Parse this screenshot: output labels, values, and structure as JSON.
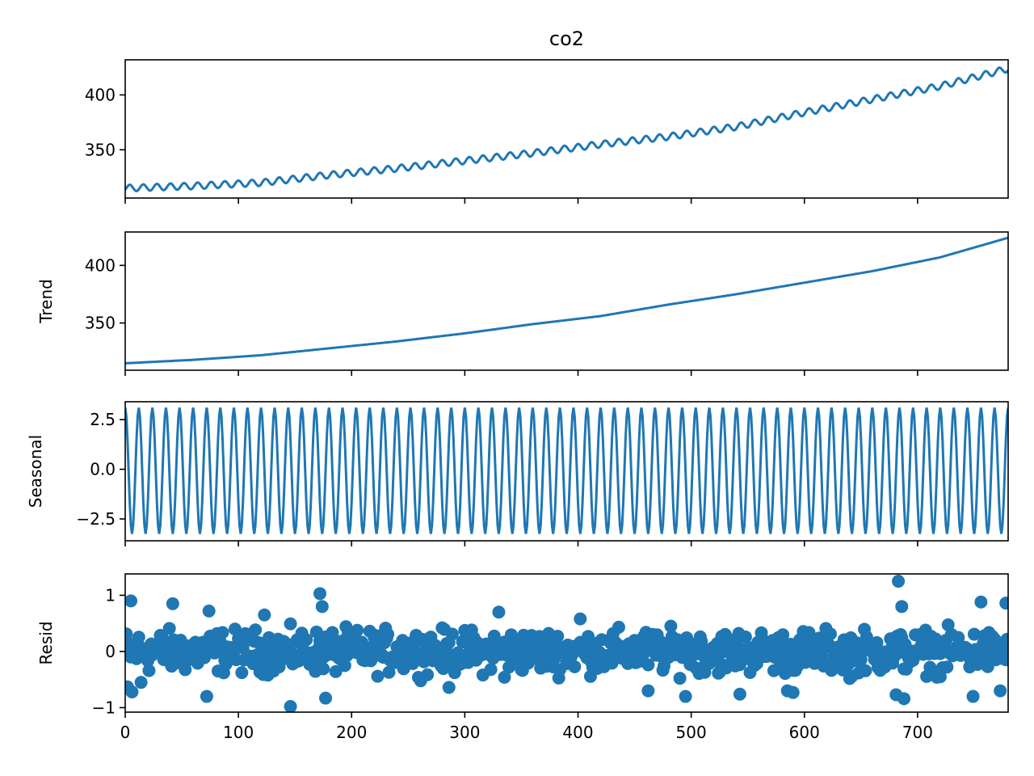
{
  "figure": {
    "title": "co2",
    "series_color": "#1f77b4"
  },
  "chart_data": [
    {
      "type": "line",
      "panel": "observed",
      "title": "co2",
      "ylabel": "",
      "xlim": [
        0,
        780
      ],
      "ylim": [
        306,
        432
      ],
      "yticks": [
        350,
        400
      ],
      "ytick_labels": [
        "350",
        "400"
      ],
      "xtick_labels_shown": false,
      "seasonal_amplitude": 3,
      "series": [
        {
          "x": [
            0,
            60,
            120,
            180,
            240,
            300,
            360,
            420,
            480,
            540,
            600,
            660,
            720,
            780
          ],
          "values": [
            315,
            317,
            320,
            327,
            333,
            340,
            347,
            355,
            362,
            371,
            384,
            396,
            408,
            424
          ]
        }
      ]
    },
    {
      "type": "line",
      "panel": "trend",
      "ylabel": "Trend",
      "xlim": [
        0,
        780
      ],
      "ylim": [
        309,
        429
      ],
      "yticks": [
        350,
        400
      ],
      "ytick_labels": [
        "350",
        "400"
      ],
      "xtick_labels_shown": false,
      "series": [
        {
          "x": [
            0,
            60,
            120,
            180,
            240,
            300,
            360,
            420,
            480,
            540,
            600,
            660,
            720,
            780
          ],
          "values": [
            315,
            318,
            322,
            328,
            334,
            341,
            349,
            356,
            366,
            375,
            385,
            395,
            407,
            424
          ]
        }
      ]
    },
    {
      "type": "line",
      "panel": "seasonal",
      "ylabel": "Seasonal",
      "xlim": [
        0,
        780
      ],
      "ylim": [
        -3.6,
        3.4
      ],
      "yticks": [
        -2.5,
        0.0,
        2.5
      ],
      "ytick_labels": [
        "−2.5",
        "0.0",
        "2.5"
      ],
      "xtick_labels_shown": false,
      "period": 12,
      "max": 3.1,
      "min": -3.25
    },
    {
      "type": "scatter",
      "panel": "resid",
      "ylabel": "Resid",
      "xlim": [
        0,
        780
      ],
      "ylim": [
        -1.08,
        1.38
      ],
      "yticks": [
        -1,
        0,
        1
      ],
      "ytick_labels": [
        "−1",
        "0",
        "1"
      ],
      "xticks": [
        0,
        100,
        200,
        300,
        400,
        500,
        600,
        700
      ],
      "xtick_labels": [
        "0",
        "100",
        "200",
        "300",
        "400",
        "500",
        "600",
        "700"
      ],
      "points": [
        [
          5,
          0.9
        ],
        [
          42,
          0.85
        ],
        [
          74,
          0.72
        ],
        [
          123,
          0.65
        ],
        [
          172,
          1.03
        ],
        [
          174,
          0.8
        ],
        [
          330,
          0.7
        ],
        [
          402,
          0.58
        ],
        [
          683,
          1.25
        ],
        [
          686,
          0.8
        ],
        [
          756,
          0.88
        ],
        [
          778,
          0.86
        ],
        [
          146,
          -0.98
        ],
        [
          177,
          -0.83
        ],
        [
          72,
          -0.8
        ],
        [
          495,
          -0.8
        ],
        [
          543,
          -0.76
        ],
        [
          585,
          -0.7
        ],
        [
          590,
          -0.73
        ],
        [
          681,
          -0.77
        ],
        [
          688,
          -0.84
        ],
        [
          749,
          -0.8
        ],
        [
          773,
          -0.7
        ],
        [
          286,
          -0.64
        ],
        [
          335,
          -0.46
        ],
        [
          462,
          -0.7
        ],
        [
          525,
          -0.37
        ],
        [
          640,
          -0.48
        ],
        [
          720,
          -0.45
        ],
        [
          6,
          -0.72
        ],
        [
          14,
          -0.55
        ],
        [
          2,
          -0.63
        ]
      ]
    }
  ]
}
